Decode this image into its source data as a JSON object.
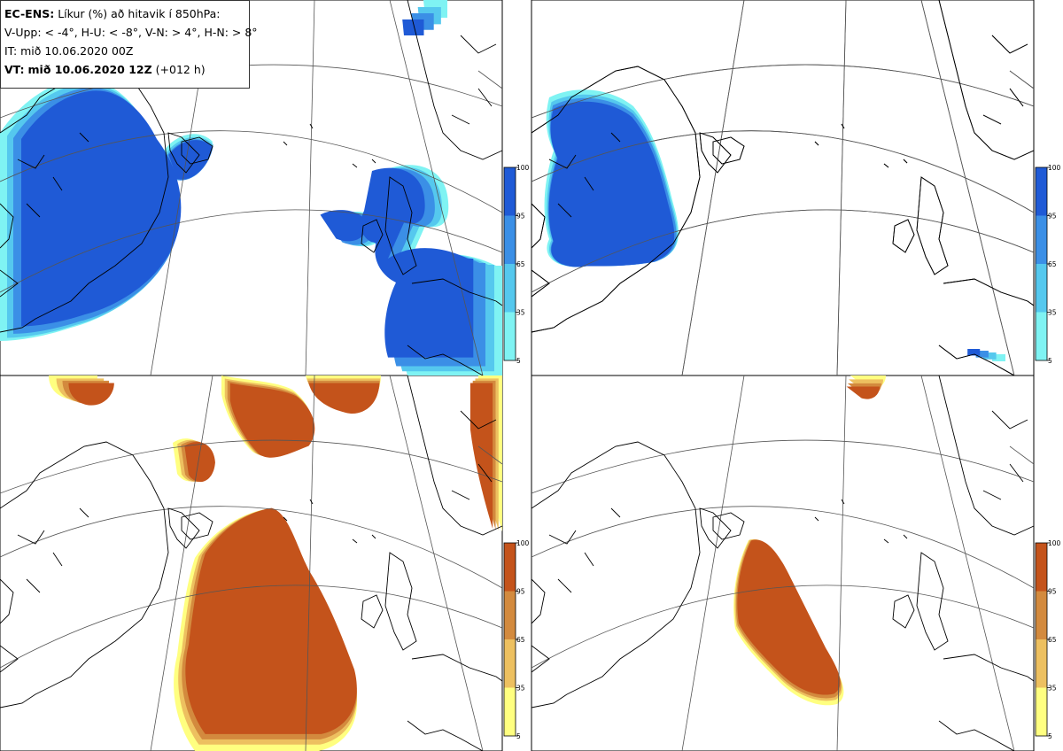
{
  "header": {
    "product": "EC-ENS:",
    "title_rest": "Líkur (%) að hitavik í 850hPa:",
    "thresholds": "V-Upp: < -4°, H-U: < -8°, V-N: > 4°, H-N: > 8°",
    "init_time": "IT: mið 10.06.2020 00Z",
    "valid_label": "VT:",
    "valid_time": "mið 10.06.2020 12Z",
    "lead": "(+012 h)"
  },
  "colors": {
    "cold": [
      "#7ff3f3",
      "#55c8ee",
      "#3b8fe6",
      "#1f5ad6"
    ],
    "warm": [
      "#ffff80",
      "#edc060",
      "#d38a3e",
      "#c4531b"
    ],
    "coast": "#000000",
    "grid": "#555555"
  },
  "colorbar_ticks": [
    "100",
    "95",
    "65",
    "35",
    "5"
  ],
  "panels": [
    {
      "id": "v-upp",
      "scheme": "cold",
      "threshold": "< -4°"
    },
    {
      "id": "h-u",
      "scheme": "cold",
      "threshold": "< -8°"
    },
    {
      "id": "v-n",
      "scheme": "warm",
      "threshold": "> 4°"
    },
    {
      "id": "h-n",
      "scheme": "warm",
      "threshold": "> 8°"
    }
  ]
}
